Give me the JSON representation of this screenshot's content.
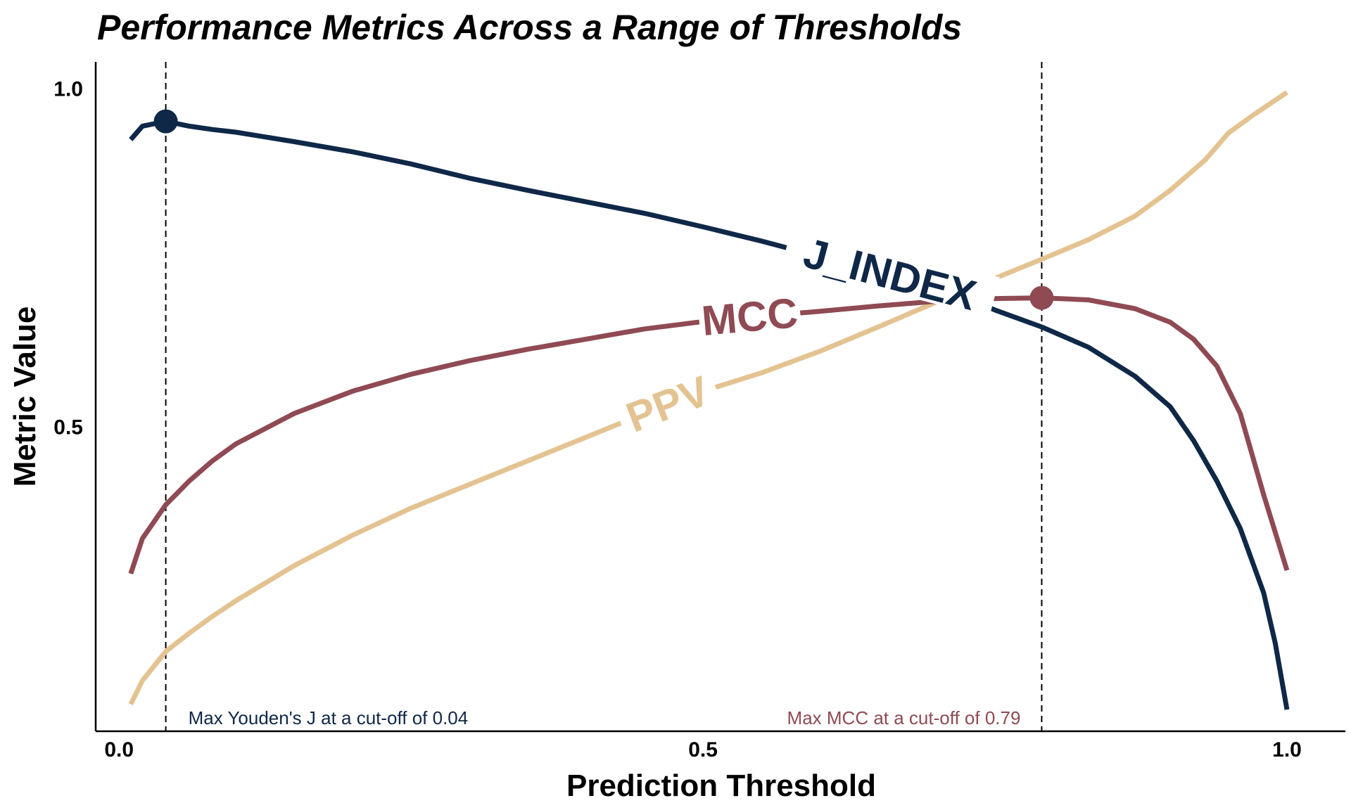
{
  "chart_data": {
    "type": "line",
    "title": "Performance Metrics Across a Range of Thresholds",
    "xlabel": "Prediction Threshold",
    "ylabel": "Metric Value",
    "xlim": [
      -0.02,
      1.05
    ],
    "ylim": [
      0.05,
      1.04
    ],
    "x_ticks": [
      "0.0",
      "0.5",
      "1.0"
    ],
    "y_ticks": [
      "0.5",
      "1.0"
    ],
    "grid": false,
    "series": [
      {
        "name": "J_INDEX",
        "color": "#0f2848",
        "label_at": 0.66,
        "points": [
          [
            0.01,
            0.925
          ],
          [
            0.02,
            0.945
          ],
          [
            0.04,
            0.952
          ],
          [
            0.06,
            0.945
          ],
          [
            0.08,
            0.94
          ],
          [
            0.1,
            0.936
          ],
          [
            0.15,
            0.922
          ],
          [
            0.2,
            0.907
          ],
          [
            0.25,
            0.889
          ],
          [
            0.3,
            0.868
          ],
          [
            0.35,
            0.85
          ],
          [
            0.4,
            0.833
          ],
          [
            0.45,
            0.816
          ],
          [
            0.5,
            0.796
          ],
          [
            0.55,
            0.775
          ],
          [
            0.6,
            0.752
          ],
          [
            0.65,
            0.73
          ],
          [
            0.7,
            0.707
          ],
          [
            0.75,
            0.673
          ],
          [
            0.79,
            0.648
          ],
          [
            0.83,
            0.618
          ],
          [
            0.87,
            0.575
          ],
          [
            0.9,
            0.53
          ],
          [
            0.92,
            0.48
          ],
          [
            0.94,
            0.42
          ],
          [
            0.96,
            0.35
          ],
          [
            0.98,
            0.255
          ],
          [
            0.99,
            0.18
          ],
          [
            1.0,
            0.082
          ]
        ]
      },
      {
        "name": "MCC",
        "color": "#8f4a53",
        "label_at": 0.54,
        "points": [
          [
            0.01,
            0.283
          ],
          [
            0.02,
            0.335
          ],
          [
            0.04,
            0.385
          ],
          [
            0.06,
            0.42
          ],
          [
            0.08,
            0.45
          ],
          [
            0.1,
            0.475
          ],
          [
            0.15,
            0.52
          ],
          [
            0.2,
            0.553
          ],
          [
            0.25,
            0.578
          ],
          [
            0.3,
            0.598
          ],
          [
            0.35,
            0.615
          ],
          [
            0.4,
            0.63
          ],
          [
            0.45,
            0.645
          ],
          [
            0.5,
            0.656
          ],
          [
            0.55,
            0.664
          ],
          [
            0.6,
            0.671
          ],
          [
            0.65,
            0.679
          ],
          [
            0.7,
            0.686
          ],
          [
            0.75,
            0.69
          ],
          [
            0.79,
            0.691
          ],
          [
            0.83,
            0.688
          ],
          [
            0.87,
            0.675
          ],
          [
            0.9,
            0.655
          ],
          [
            0.92,
            0.63
          ],
          [
            0.94,
            0.59
          ],
          [
            0.96,
            0.52
          ],
          [
            0.98,
            0.4
          ],
          [
            1.0,
            0.288
          ]
        ]
      },
      {
        "name": "PPV",
        "color": "#e3c391",
        "label_at": 0.47,
        "points": [
          [
            0.01,
            0.09
          ],
          [
            0.02,
            0.125
          ],
          [
            0.04,
            0.168
          ],
          [
            0.06,
            0.195
          ],
          [
            0.08,
            0.22
          ],
          [
            0.1,
            0.243
          ],
          [
            0.15,
            0.295
          ],
          [
            0.2,
            0.34
          ],
          [
            0.25,
            0.38
          ],
          [
            0.3,
            0.415
          ],
          [
            0.35,
            0.45
          ],
          [
            0.4,
            0.485
          ],
          [
            0.45,
            0.52
          ],
          [
            0.5,
            0.553
          ],
          [
            0.55,
            0.58
          ],
          [
            0.6,
            0.612
          ],
          [
            0.65,
            0.648
          ],
          [
            0.7,
            0.685
          ],
          [
            0.75,
            0.72
          ],
          [
            0.79,
            0.748
          ],
          [
            0.83,
            0.777
          ],
          [
            0.87,
            0.812
          ],
          [
            0.9,
            0.85
          ],
          [
            0.93,
            0.895
          ],
          [
            0.95,
            0.935
          ],
          [
            0.97,
            0.96
          ],
          [
            1.0,
            0.995
          ]
        ]
      }
    ],
    "markers": [
      {
        "series": "J_INDEX",
        "x": 0.04,
        "y": 0.952
      },
      {
        "series": "MCC",
        "x": 0.79,
        "y": 0.691
      }
    ],
    "vlines": [
      0.04,
      0.79
    ],
    "annotations": [
      {
        "text": "Max Youden's J at a cut-off of 0.04",
        "x": 0.04,
        "color": "#0f2848",
        "anchor": "start"
      },
      {
        "text": "Max MCC at a cut-off of 0.79",
        "x": 0.79,
        "color": "#8f4a53",
        "anchor": "end"
      }
    ]
  }
}
